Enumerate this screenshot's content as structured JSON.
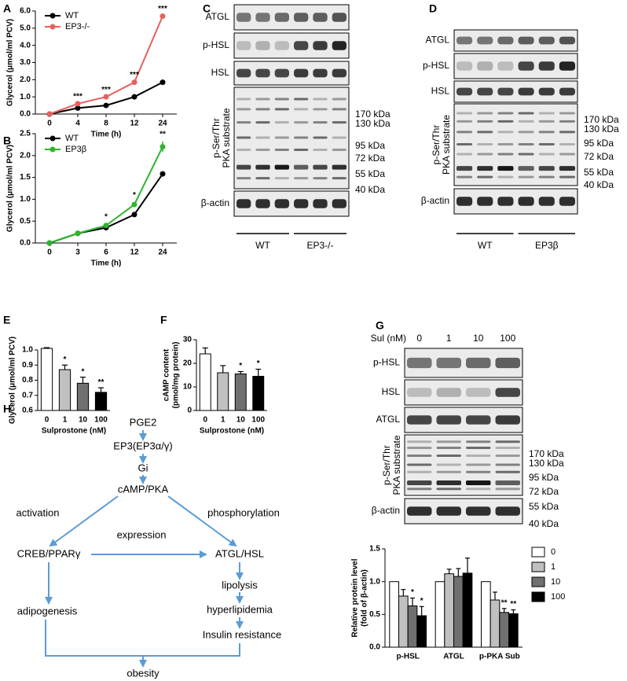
{
  "panel_letters": [
    "A",
    "B",
    "C",
    "D",
    "E",
    "F",
    "G",
    "H"
  ],
  "chart_data": [
    {
      "type": "line",
      "ylabel": "Glycerol (μmol/ml PCV)",
      "xlabel": "Time (h)",
      "categories": [
        "0",
        "4",
        "8",
        "12",
        "24"
      ],
      "series": [
        {
          "name": "WT",
          "color": "#000000",
          "values": [
            0,
            0.35,
            0.5,
            1.0,
            1.85
          ]
        },
        {
          "name": "EP3-/-",
          "color": "#e8605f",
          "values": [
            0,
            0.6,
            1.0,
            1.85,
            5.7
          ]
        }
      ],
      "annotations": [
        null,
        "***",
        "***",
        "***",
        "***"
      ],
      "ylim": [
        0,
        6
      ],
      "yticks": [
        {
          "value": 0,
          "label": "0.0"
        },
        {
          "value": 1,
          "label": "1.0"
        },
        {
          "value": 2,
          "label": "2.0"
        },
        {
          "value": 3,
          "label": "3.0"
        },
        {
          "value": 4,
          "label": "4.0"
        },
        {
          "value": 5,
          "label": "5.0"
        },
        {
          "value": 6,
          "label": "6.0"
        }
      ],
      "legend": "upper left"
    },
    {
      "type": "line",
      "ylabel": "Glycerol (μmol/ml PCV)",
      "xlabel": "Time (h)",
      "categories": [
        "0",
        "3",
        "6",
        "12",
        "24"
      ],
      "series": [
        {
          "name": "WT",
          "color": "#000000",
          "values": [
            0,
            0.22,
            0.35,
            0.65,
            1.58
          ]
        },
        {
          "name": "EP3β",
          "color": "#2db52d",
          "values": [
            0,
            0.22,
            0.4,
            0.88,
            2.2
          ],
          "errors": [
            0,
            0,
            0.03,
            0.05,
            0.12
          ]
        }
      ],
      "annotations": [
        null,
        null,
        "*",
        "*",
        "**"
      ],
      "ylim": [
        0,
        2.5
      ],
      "yticks": [
        {
          "value": 0,
          "label": "0.0"
        },
        0.5,
        {
          "value": 1,
          "label": "1.0"
        },
        1.5,
        {
          "value": 2,
          "label": "2.0"
        },
        2.5
      ],
      "legend": "upper left"
    },
    {
      "type": "bar",
      "ylabel": "Glycerol (μmol/ml PCV)",
      "xlabel": "Sulprostone (nM)",
      "categories": [
        "0",
        "1",
        "10",
        "100"
      ],
      "values": [
        1.01,
        0.87,
        0.78,
        0.72
      ],
      "errors": [
        0.005,
        0.03,
        0.04,
        0.03
      ],
      "colors": [
        "#ffffff",
        "#c0c0c0",
        "#707070",
        "#000000"
      ],
      "annotations": [
        null,
        "*",
        "*",
        "**"
      ],
      "ylim": [
        0.6,
        1.0
      ],
      "yticks": [
        0.6,
        0.7,
        0.8,
        0.9,
        {
          "value": 1.0,
          "label": "1.0"
        }
      ]
    },
    {
      "type": "bar",
      "ylabel": [
        "cAMP content",
        "(pmol/mg protein)"
      ],
      "xlabel": "Sulprostone (nM)",
      "categories": [
        "0",
        "1",
        "10",
        "100"
      ],
      "values": [
        24,
        16,
        15.5,
        14.5
      ],
      "errors": [
        2.5,
        3,
        1,
        3
      ],
      "colors": [
        "#ffffff",
        "#c0c0c0",
        "#707070",
        "#000000"
      ],
      "annotations": [
        null,
        null,
        "*",
        "*"
      ],
      "ylim": [
        0,
        30
      ],
      "yticks": [
        0,
        10,
        20,
        30
      ]
    },
    {
      "type": "bar",
      "ylabel": [
        "Relative protein level",
        "(fold of β-actin)"
      ],
      "categories": [
        "p-HSL",
        "ATGL",
        "p-PKA Sub"
      ],
      "series": [
        {
          "name": "0",
          "color": "#ffffff",
          "values": [
            1,
            1,
            1
          ]
        },
        {
          "name": "1",
          "color": "#c0c0c0",
          "values": [
            0.78,
            1.12,
            0.72
          ],
          "errors": [
            0.1,
            0.07,
            0.12
          ]
        },
        {
          "name": "10",
          "color": "#707070",
          "values": [
            0.63,
            1.08,
            0.53
          ],
          "errors": [
            0.12,
            0.12,
            0.06
          ],
          "annotations": [
            "*",
            null,
            "**"
          ]
        },
        {
          "name": "100",
          "color": "#000000",
          "values": [
            0.48,
            1.13,
            0.51
          ],
          "errors": [
            0.14,
            0.23,
            0.06
          ],
          "annotations": [
            "*",
            null,
            "**"
          ]
        }
      ],
      "ylim": [
        0,
        1.5
      ],
      "yticks": [
        {
          "value": 0,
          "label": "0.0"
        },
        0.5,
        {
          "value": 1,
          "label": "1.0"
        },
        1.5
      ],
      "legend": "upper right"
    }
  ],
  "blots": {
    "C": {
      "rows": [
        "ATGL",
        "p-HSL",
        "HSL",
        [
          "p-Ser/Thr",
          "PKA substrate"
        ],
        "β-actin"
      ],
      "markers": [
        "170 kDa",
        "130 kDa",
        "95 kDa",
        "72 kDa",
        "55 kDa",
        "40 kDa"
      ],
      "groups": [
        "WT",
        "EP3-/-"
      ]
    },
    "D": {
      "rows": [
        "ATGL",
        "p-HSL",
        "HSL",
        [
          "p-Ser/Thr",
          "PKA substrate"
        ],
        "β-actin"
      ],
      "markers": [
        "170 kDa",
        "130 kDa",
        "95 kDa",
        "72 kDa",
        "55 kDa",
        "40 kDa"
      ],
      "groups": [
        "WT",
        "EP3β"
      ]
    },
    "G": {
      "header": "Sul (nM)",
      "lanes": [
        "0",
        "1",
        "10",
        "100"
      ],
      "rows": [
        "p-HSL",
        "HSL",
        "ATGL",
        [
          "p-Ser/Thr",
          "PKA substrate"
        ],
        "β-actin"
      ],
      "markers": [
        "170 kDa",
        "130 kDa",
        "95 kDa",
        "72 kDa",
        "55 kDa",
        "40 kDa"
      ]
    }
  },
  "diagram": {
    "nodes": [
      "PGE2",
      "EP3(EP3α/γ)",
      "Gi",
      "cAMP/PKA",
      "CREB/PPARγ",
      "ATGL/HSL",
      "lipolysis",
      "adipogenesis",
      "hyperlipidemia",
      "Insulin resistance",
      "obesity"
    ],
    "edge_labels": [
      "activation",
      "phosphorylation",
      "expression"
    ]
  }
}
